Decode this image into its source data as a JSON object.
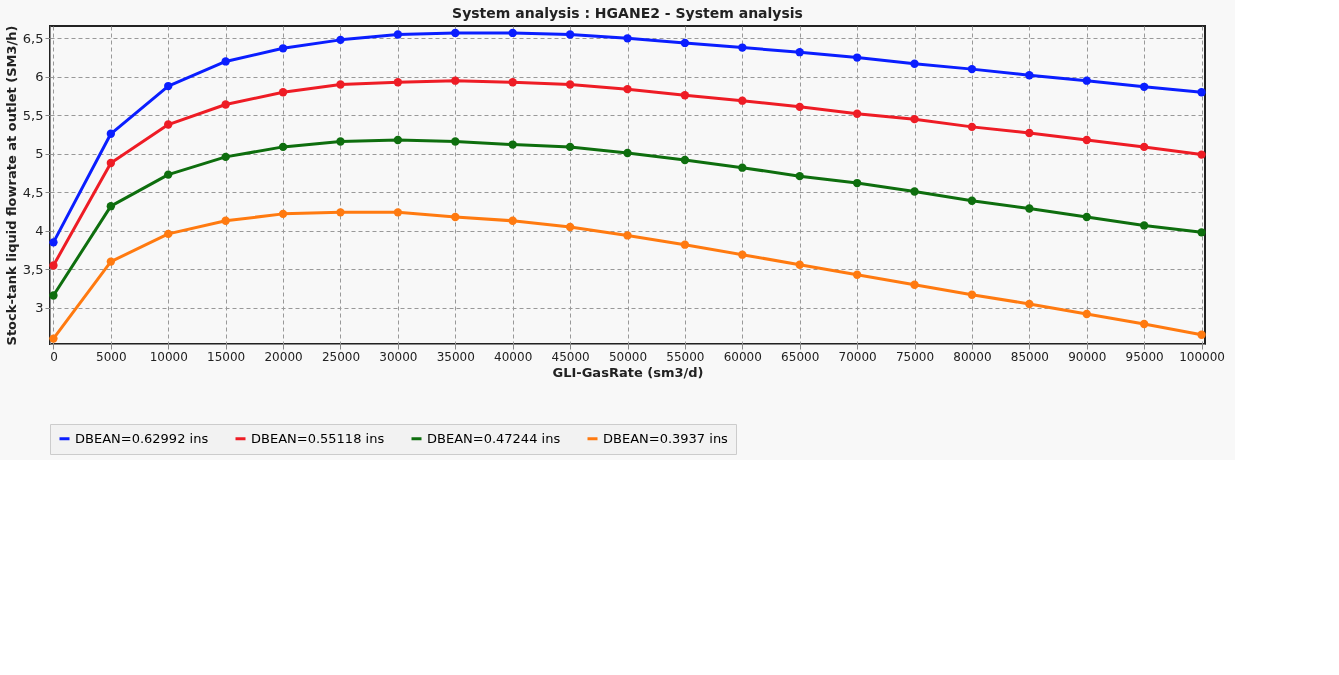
{
  "chart_data": {
    "type": "line",
    "title": "System analysis : HGANE2 - System analysis",
    "xlabel": "GLI-GasRate (sm3/d)",
    "ylabel": "Stock-tank liquid flowrate at outlet (SM3/h)",
    "x": [
      0,
      5000,
      10000,
      15000,
      20000,
      25000,
      30000,
      35000,
      40000,
      45000,
      50000,
      55000,
      60000,
      65000,
      70000,
      75000,
      80000,
      85000,
      90000,
      95000,
      100000
    ],
    "series": [
      {
        "name": "DBEAN=0.62992 ins",
        "color": "#0a1eff",
        "values": [
          3.85,
          5.26,
          5.88,
          6.2,
          6.37,
          6.48,
          6.55,
          6.57,
          6.57,
          6.55,
          6.5,
          6.44,
          6.38,
          6.32,
          6.25,
          6.17,
          6.1,
          6.02,
          5.95,
          5.87,
          5.8
        ]
      },
      {
        "name": "DBEAN=0.55118 ins",
        "color": "#ee1c25",
        "values": [
          3.55,
          4.88,
          5.38,
          5.64,
          5.8,
          5.9,
          5.93,
          5.95,
          5.93,
          5.9,
          5.84,
          5.76,
          5.69,
          5.61,
          5.52,
          5.45,
          5.35,
          5.27,
          5.18,
          5.09,
          4.99
        ]
      },
      {
        "name": "DBEAN=0.47244 ins",
        "color": "#0e6e0e",
        "values": [
          3.16,
          4.32,
          4.73,
          4.96,
          5.09,
          5.16,
          5.18,
          5.16,
          5.12,
          5.09,
          5.01,
          4.92,
          4.82,
          4.71,
          4.62,
          4.51,
          4.39,
          4.29,
          4.18,
          4.07,
          3.98
        ]
      },
      {
        "name": "DBEAN=0.3937 ins",
        "color": "#ff7a10",
        "values": [
          2.6,
          3.6,
          3.96,
          4.13,
          4.22,
          4.24,
          4.24,
          4.18,
          4.13,
          4.05,
          3.94,
          3.82,
          3.69,
          3.56,
          3.43,
          3.3,
          3.17,
          3.05,
          2.92,
          2.79,
          2.65
        ]
      }
    ],
    "xlim": [
      -300,
      100300
    ],
    "ylim": [
      2.53,
      6.66
    ],
    "xticks": [
      0,
      5000,
      10000,
      15000,
      20000,
      25000,
      30000,
      35000,
      40000,
      45000,
      50000,
      55000,
      60000,
      65000,
      70000,
      75000,
      80000,
      85000,
      90000,
      95000,
      100000
    ],
    "yticks": [
      {
        "value": 3,
        "label": "3"
      },
      {
        "value": 3.5,
        "label": "3,5"
      },
      {
        "value": 4,
        "label": "4"
      },
      {
        "value": 4.5,
        "label": "4,5"
      },
      {
        "value": 5,
        "label": "5"
      },
      {
        "value": 5.5,
        "label": "5,5"
      },
      {
        "value": 6,
        "label": "6"
      },
      {
        "value": 6.5,
        "label": "6,5"
      }
    ],
    "grid": true,
    "legend": "bottom",
    "marker": "circle",
    "line_style": "solid"
  }
}
